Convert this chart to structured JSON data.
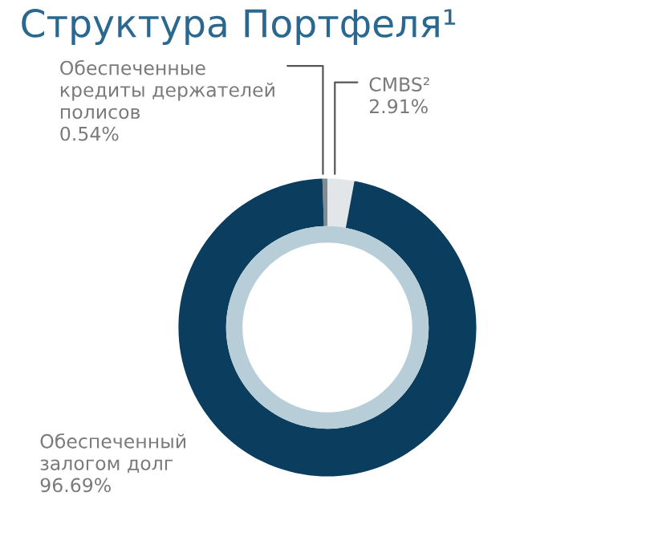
{
  "chart_data": {
    "type": "donut",
    "title": "Структура Портфеля¹",
    "categories": [
      "Обеспеченные\nкредиты держателей\nполисов",
      "CMBS²",
      "Обеспеченный\nзалогом долг"
    ],
    "values": [
      0.54,
      2.91,
      96.69
    ],
    "value_labels": [
      "0.54%",
      "2.91%",
      "96.69%"
    ],
    "colors": [
      "#7f8c94",
      "#e3e6e8",
      "#0b3e5e"
    ],
    "legend": false
  }
}
